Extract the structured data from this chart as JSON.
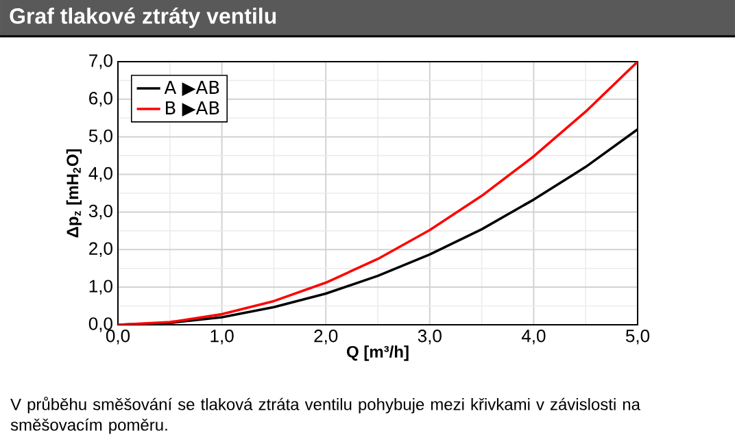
{
  "chart_data": {
    "type": "line",
    "title": "Graf tlakové ztráty ventilu",
    "xlabel": "Q [m³/h]",
    "ylabel": "Δp$_{z}$ [mH$_{2}$O]",
    "annotations": [
      "V průběhu směšování se tlaková ztráta ventilu pohybuje mezi křivkami v závislosti na směšovacím poměru."
    ],
    "x": [
      0,
      0.5,
      1,
      1.5,
      2,
      2.5,
      3,
      3.5,
      4,
      4.5,
      5
    ],
    "series": [
      {
        "name": "A ▶AB",
        "color": "#000000",
        "values": [
          0,
          0.05,
          0.2,
          0.47,
          0.83,
          1.3,
          1.87,
          2.54,
          3.33,
          4.2,
          5.2
        ]
      },
      {
        "name": "B ▶AB",
        "color": "#ff0000",
        "values": [
          0,
          0.07,
          0.28,
          0.63,
          1.12,
          1.75,
          2.52,
          3.43,
          4.48,
          5.67,
          7.0
        ]
      }
    ],
    "xlim": [
      0,
      5
    ],
    "ylim": [
      0,
      7
    ],
    "xticks": [
      {
        "value": 0,
        "label": "0,0"
      },
      {
        "value": 1,
        "label": "1,0"
      },
      {
        "value": 2,
        "label": "2,0"
      },
      {
        "value": 3,
        "label": "3,0"
      },
      {
        "value": 4,
        "label": "4,0"
      },
      {
        "value": 5,
        "label": "5,0"
      }
    ],
    "yticks": [
      {
        "value": 0,
        "label": "0,0"
      },
      {
        "value": 1,
        "label": "1,0"
      },
      {
        "value": 2,
        "label": "2,0"
      },
      {
        "value": 3,
        "label": "3,0"
      },
      {
        "value": 4,
        "label": "4,0"
      },
      {
        "value": 5,
        "label": "5,0"
      },
      {
        "value": 6,
        "label": "6,0"
      },
      {
        "value": 7,
        "label": "7,0"
      }
    ],
    "grid": true,
    "legend": "top left",
    "line_style": "solid",
    "marker": "none"
  }
}
